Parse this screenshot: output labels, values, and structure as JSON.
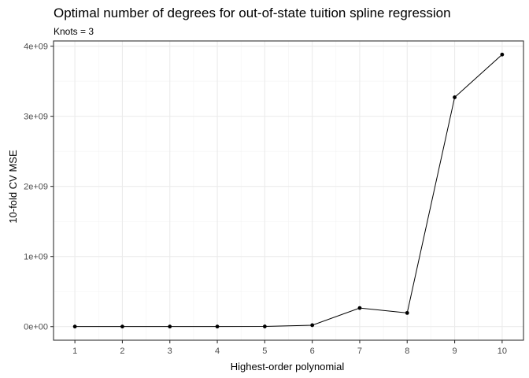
{
  "chart_data": {
    "type": "line",
    "title": "Optimal number of degrees for out-of-state tuition spline regression",
    "subtitle": "Knots = 3",
    "xlabel": "Highest-order polynomial",
    "ylabel": "10-fold CV MSE",
    "x": [
      1,
      2,
      3,
      4,
      5,
      6,
      7,
      8,
      9,
      10
    ],
    "series": [
      {
        "values": [
          1000000,
          1000000,
          1000000,
          1000000,
          2000000,
          20000000,
          265000000,
          195000000,
          3270000000,
          3880000000
        ]
      }
    ],
    "xlim": [
      0.55,
      10.45
    ],
    "ylim": [
      -194000000,
      4074000000
    ],
    "xticks": [
      1,
      2,
      3,
      4,
      5,
      6,
      7,
      8,
      9,
      10
    ],
    "yticks": [
      0,
      1000000000,
      2000000000,
      3000000000,
      4000000000
    ],
    "ytick_labels": [
      "0e+00",
      "1e+09",
      "2e+09",
      "3e+09",
      "4e+09"
    ],
    "grid": true,
    "legend": "none",
    "colors": {
      "line": "#000000",
      "point": "#000000",
      "grid_major": "#ebebeb",
      "grid_minor": "#f3f3f3",
      "panel_border": "#333333",
      "tick_text": "#4d4d4d"
    }
  }
}
